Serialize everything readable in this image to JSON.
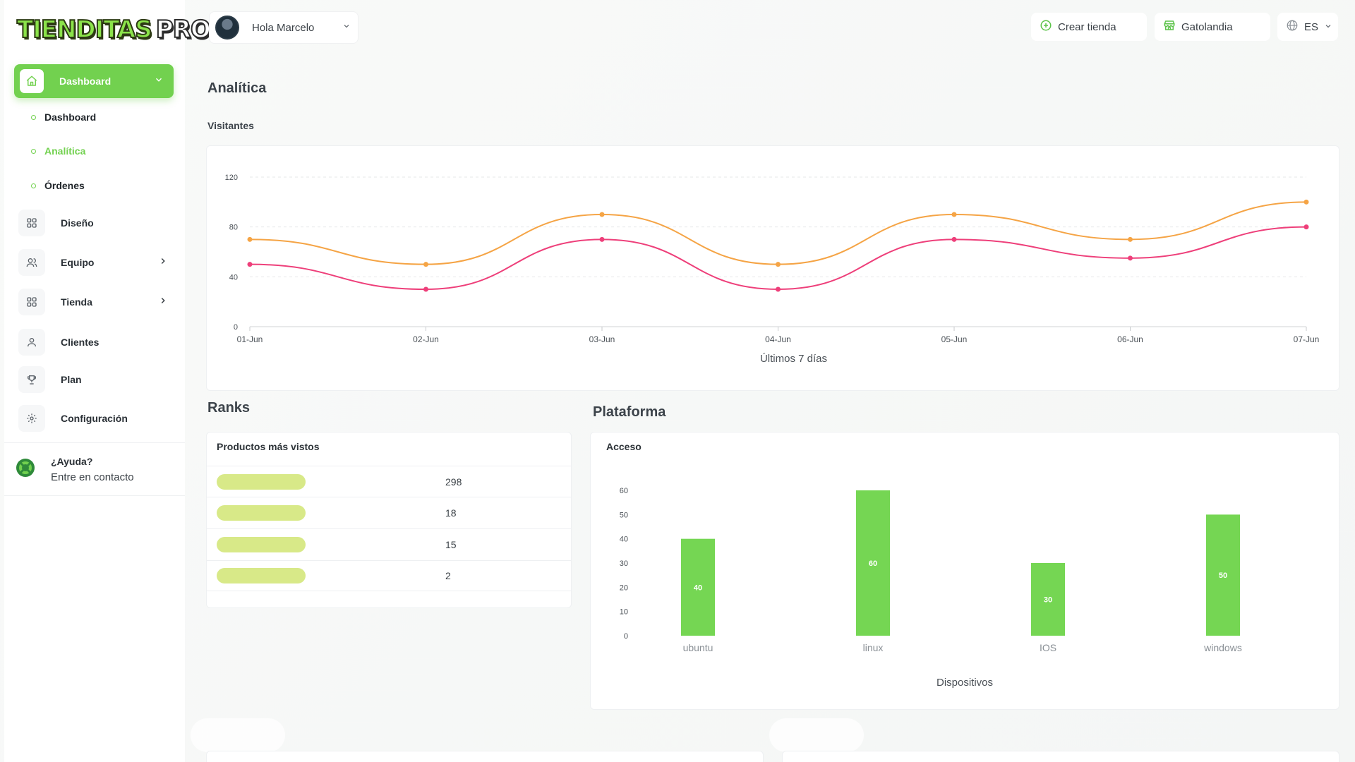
{
  "brand": {
    "logo_part1": "TIENDITAS",
    "logo_part2": "PRO"
  },
  "sidebar": {
    "active_section": "Dashboard",
    "sub_items": [
      {
        "label": "Dashboard",
        "active": false
      },
      {
        "label": "Analítica",
        "active": true
      },
      {
        "label": "Órdenes",
        "active": false
      }
    ],
    "items": [
      {
        "label": "Diseño",
        "icon": "grid-icon",
        "expandable": false
      },
      {
        "label": "Equipo",
        "icon": "users-icon",
        "expandable": true
      },
      {
        "label": "Tienda",
        "icon": "grid-icon",
        "expandable": true
      },
      {
        "label": "Clientes",
        "icon": "user-icon",
        "expandable": false
      },
      {
        "label": "Plan",
        "icon": "trophy-icon",
        "expandable": false
      },
      {
        "label": "Configuración",
        "icon": "gear-icon",
        "expandable": false
      }
    ],
    "help": {
      "title": "¿Ayuda?",
      "link": "Entre en contacto"
    }
  },
  "header": {
    "greeting": "Hola Marcelo",
    "create_store": "Crear tienda",
    "store_name": "Gatolandia",
    "language": "ES"
  },
  "page": {
    "title": "Analítica",
    "visitors_title": "Visitantes"
  },
  "visitors_chart": {
    "chart_data": {
      "type": "line",
      "x": [
        "01-Jun",
        "02-Jun",
        "03-Jun",
        "04-Jun",
        "05-Jun",
        "06-Jun",
        "07-Jun"
      ],
      "series": [
        {
          "values": [
            70,
            50,
            90,
            50,
            90,
            70,
            100
          ],
          "color": "#f5a445"
        },
        {
          "values": [
            50,
            30,
            70,
            30,
            70,
            55,
            80
          ],
          "color": "#ee3f7a"
        }
      ],
      "xlabel": "Últimos 7 días",
      "ylim": [
        0,
        120
      ],
      "yticks": [
        0,
        40,
        80,
        120
      ],
      "grid": true
    }
  },
  "ranks": {
    "title": "Ranks",
    "card_title": "Productos más vistos",
    "rows": [
      {
        "value": "298"
      },
      {
        "value": "18"
      },
      {
        "value": "15"
      },
      {
        "value": "2"
      }
    ]
  },
  "platform": {
    "title": "Plataforma",
    "card_title": "Acceso",
    "chart_data": {
      "type": "bar",
      "categories": [
        "ubuntu",
        "linux",
        "IOS",
        "windows"
      ],
      "values": [
        40,
        60,
        30,
        50
      ],
      "xlabel": "Dispositivos",
      "ylim": [
        0,
        60
      ],
      "yticks": [
        0,
        10,
        20,
        30,
        40,
        50,
        60
      ],
      "bar_color": "#75d653",
      "data_labels": true
    }
  }
}
